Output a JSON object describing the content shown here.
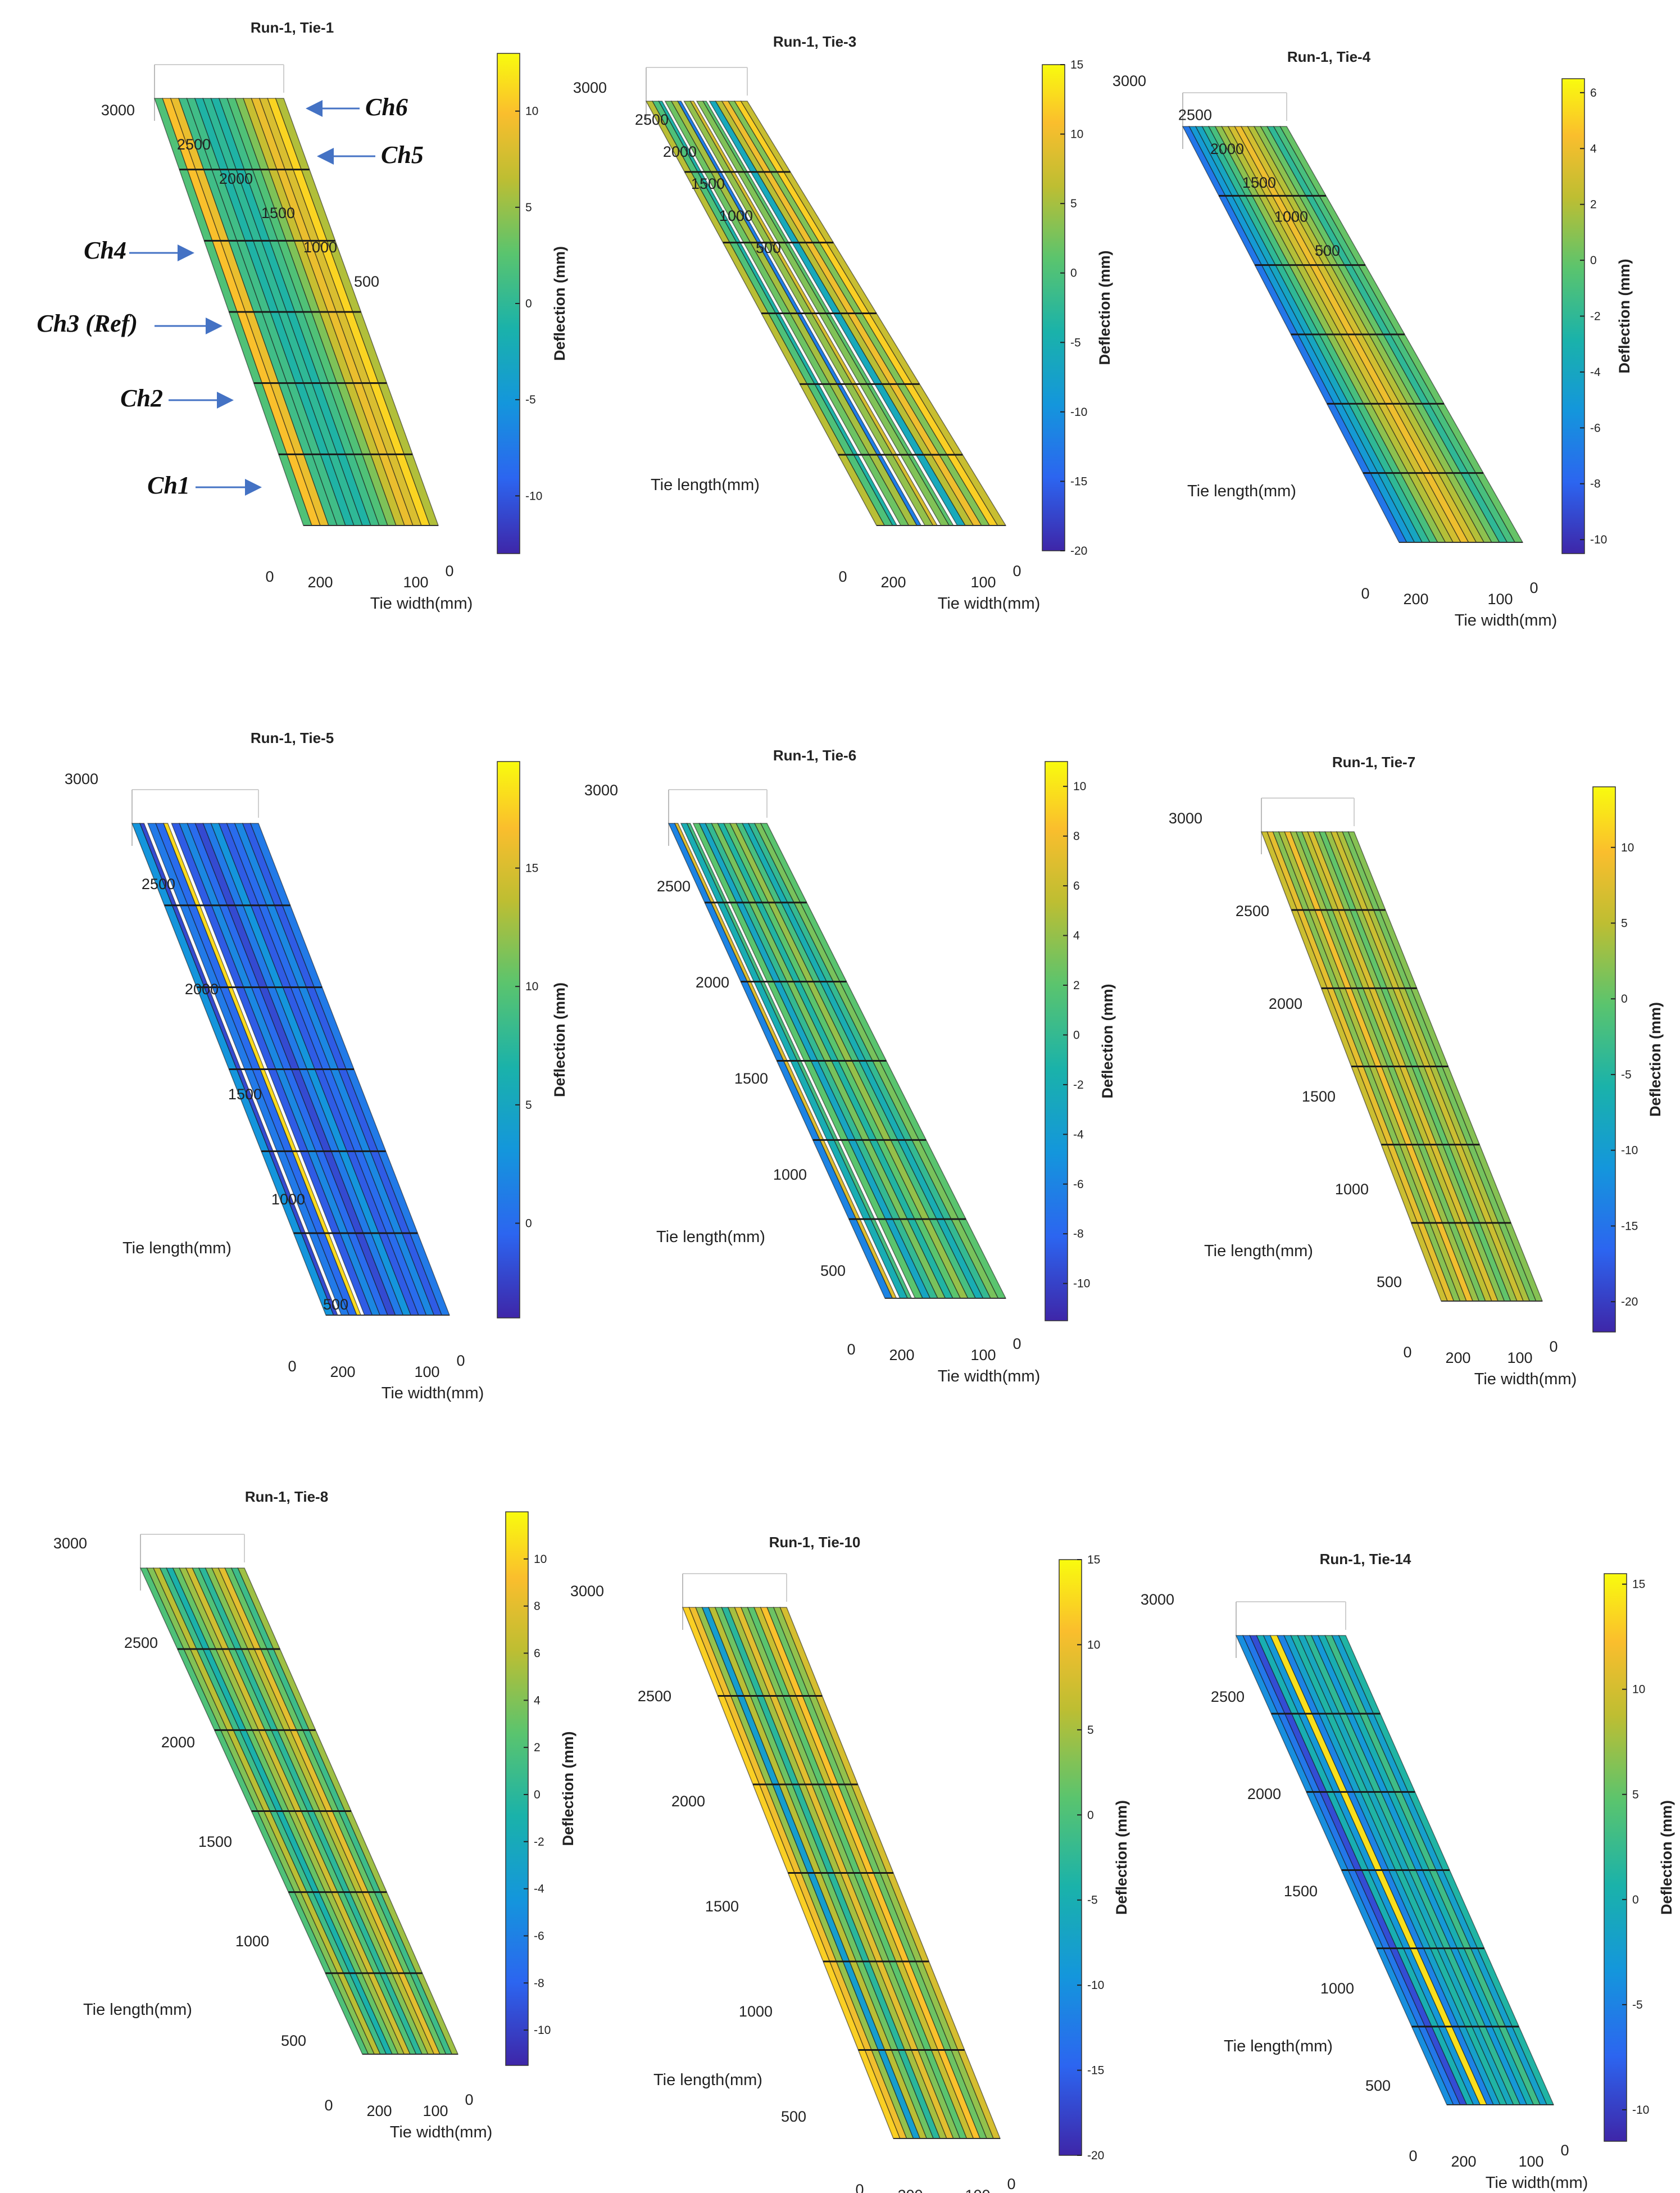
{
  "chart_data": [
    {
      "type": "surface",
      "title": "Run-1, Tie-1",
      "xlabel": "Tie width(mm)",
      "ylabel": "",
      "zlabel": "Deflection (mm)",
      "x_ticks": [
        "0",
        "200",
        "100",
        "0"
      ],
      "y_ticks": [
        "3000",
        "2500",
        "2000",
        "1500",
        "1000",
        "500"
      ],
      "colorbar_ticks": [
        "10",
        "5",
        "0",
        "-5",
        "-10"
      ],
      "colorbar_range": [
        -13,
        13
      ],
      "stripes": [
        2,
        10,
        9,
        1,
        1,
        -1,
        0,
        -1,
        1,
        2,
        4,
        7,
        9,
        8,
        11,
        6
      ],
      "channels": [
        "Ch6",
        "Ch5",
        "Ch4",
        "Ch3 (Ref)",
        "Ch2",
        "Ch1"
      ]
    },
    {
      "type": "surface",
      "title": "Run-1, Tie-3",
      "xlabel": "Tie width(mm)",
      "ylabel": "Tie length(mm)",
      "zlabel": "Deflection (mm)",
      "x_ticks": [
        "0",
        "200",
        "100",
        "0"
      ],
      "y_ticks": [
        "3000",
        "2500",
        "2000",
        "1500",
        "1000",
        "500"
      ],
      "colorbar_ticks": [
        "15",
        "10",
        "5",
        "0",
        "-5",
        "-10",
        "-15",
        "-20"
      ],
      "colorbar_range": [
        -20,
        15
      ],
      "stripes": [
        6,
        0,
        -4,
        2,
        5,
        -12,
        4,
        8,
        3,
        1,
        -6,
        6,
        10,
        3,
        12,
        7
      ],
      "gaps": [
        2,
        5,
        7,
        9
      ]
    },
    {
      "type": "surface",
      "title": "Run-1, Tie-4",
      "xlabel": "Tie width(mm)",
      "ylabel": "Tie length(mm)",
      "zlabel": "Deflection (mm)",
      "x_ticks": [
        "0",
        "200",
        "100",
        "0"
      ],
      "y_ticks": [
        "3000",
        "2500",
        "2000",
        "1500",
        "1000",
        "500"
      ],
      "colorbar_ticks": [
        "6",
        "4",
        "2",
        "0",
        "-2",
        "-4",
        "-6",
        "-8",
        "-10"
      ],
      "colorbar_range": [
        -10.5,
        6.5
      ],
      "stripes": [
        -7,
        -5,
        -4,
        -2,
        -1,
        1,
        2,
        3,
        4,
        3,
        2,
        1,
        0,
        -2,
        -1,
        0
      ]
    },
    {
      "type": "surface",
      "title": "Run-1, Tie-5",
      "xlabel": "Tie width(mm)",
      "ylabel": "Tie length(mm)",
      "zlabel": "Deflection (mm)",
      "x_ticks": [
        "0",
        "200",
        "100",
        "0"
      ],
      "y_ticks": [
        "3000",
        "2500",
        "2000",
        "1500",
        "1000",
        "500"
      ],
      "colorbar_ticks": [
        "15",
        "10",
        "5",
        "0"
      ],
      "colorbar_range": [
        -4,
        19.5
      ],
      "stripes": [
        3,
        -2,
        1,
        0,
        18,
        -1,
        2,
        0,
        -2,
        1,
        3,
        -1,
        0,
        2,
        -1,
        1
      ],
      "gaps": [
        1,
        4
      ]
    },
    {
      "type": "surface",
      "title": "Run-1, Tie-6",
      "xlabel": "Tie width(mm)",
      "ylabel": "Tie length(mm)",
      "zlabel": "Deflection (mm)",
      "x_ticks": [
        "0",
        "200",
        "100",
        "0"
      ],
      "y_ticks": [
        "3000",
        "2500",
        "2000",
        "1500",
        "1000",
        "500"
      ],
      "colorbar_ticks": [
        "10",
        "8",
        "6",
        "4",
        "2",
        "0",
        "-2",
        "-4",
        "-6",
        "-8",
        "-10"
      ],
      "colorbar_range": [
        -11.5,
        11
      ],
      "stripes": [
        -6,
        7,
        -2,
        1,
        2,
        -3,
        0,
        3,
        -1,
        2,
        4,
        1,
        -2,
        0,
        3,
        2
      ],
      "gaps": [
        1,
        3
      ]
    },
    {
      "type": "surface",
      "title": "Run-1, Tie-7",
      "xlabel": "Tie width(mm)",
      "ylabel": "Tie length(mm)",
      "zlabel": "Deflection (mm)",
      "x_ticks": [
        "0",
        "200",
        "100",
        "0"
      ],
      "y_ticks": [
        "3000",
        "2500",
        "2000",
        "1500",
        "1000",
        "500"
      ],
      "colorbar_ticks": [
        "10",
        "5",
        "0",
        "-5",
        "-10",
        "-15",
        "-20"
      ],
      "colorbar_range": [
        -22,
        14
      ],
      "stripes": [
        6,
        8,
        2,
        4,
        9,
        3,
        1,
        5,
        7,
        2,
        0,
        3,
        6,
        4,
        1,
        2
      ]
    },
    {
      "type": "surface",
      "title": "Run-1, Tie-8",
      "xlabel": "Tie width(mm)",
      "ylabel": "Tie length(mm)",
      "zlabel": "Deflection (mm)",
      "x_ticks": [
        "0",
        "200",
        "100",
        "0"
      ],
      "y_ticks": [
        "3000",
        "2500",
        "2000",
        "1500",
        "1000",
        "500"
      ],
      "colorbar_ticks": [
        "10",
        "8",
        "6",
        "4",
        "2",
        "0",
        "-2",
        "-4",
        "-6",
        "-8",
        "-10"
      ],
      "colorbar_range": [
        -11.5,
        12
      ],
      "stripes": [
        2,
        4,
        6,
        1,
        -1,
        3,
        5,
        7,
        2,
        0,
        4,
        6,
        8,
        3,
        1,
        5
      ]
    },
    {
      "type": "surface",
      "title": "Run-1, Tie-10",
      "xlabel": "Tie width(mm)",
      "ylabel": "Tie length(mm)",
      "zlabel": "Deflection (mm)",
      "x_ticks": [
        "0",
        "200",
        "100",
        "0"
      ],
      "y_ticks": [
        "3000",
        "2500",
        "2000",
        "1500",
        "1000",
        "500"
      ],
      "colorbar_ticks": [
        "15",
        "10",
        "5",
        "0",
        "-5",
        "-10",
        "-15",
        "-20"
      ],
      "colorbar_range": [
        -20,
        15
      ],
      "stripes": [
        12,
        10,
        4,
        -8,
        6,
        2,
        -3,
        5,
        9,
        3,
        1,
        7,
        11,
        2,
        4,
        8
      ]
    },
    {
      "type": "surface",
      "title": "Run-1, Tie-14",
      "xlabel": "Tie width(mm)",
      "ylabel": "Tie length(mm)",
      "zlabel": "Deflection (mm)",
      "x_ticks": [
        "0",
        "200",
        "100",
        "0"
      ],
      "y_ticks": [
        "3000",
        "2500",
        "2000",
        "1500",
        "1000",
        "500"
      ],
      "colorbar_ticks": [
        "15",
        "10",
        "5",
        "0",
        "-5",
        "-10"
      ],
      "colorbar_range": [
        -11.5,
        15.5
      ],
      "stripes": [
        -4,
        -6,
        -9,
        0,
        -3,
        14,
        -5,
        -2,
        1,
        -1,
        2,
        -3,
        0,
        3,
        -2,
        1
      ]
    }
  ]
}
